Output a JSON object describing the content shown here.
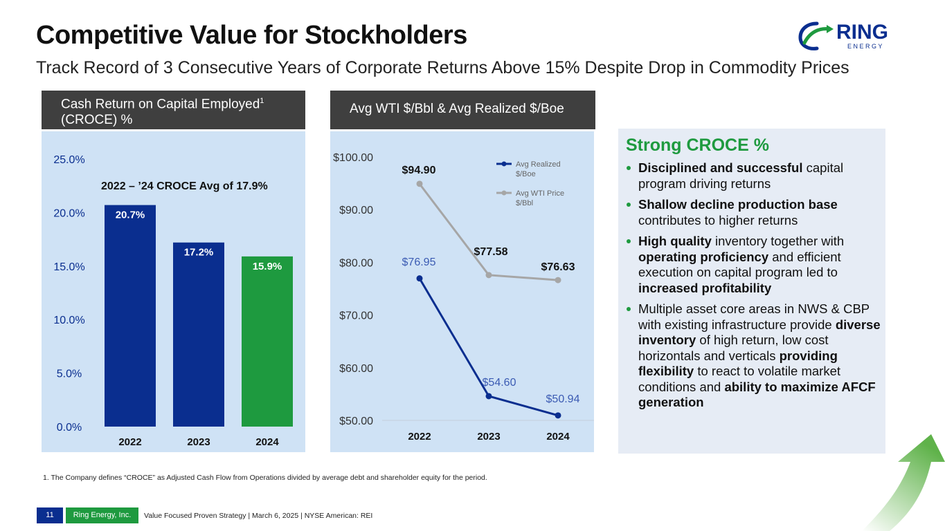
{
  "header": {
    "title": "Competitive Value for Stockholders",
    "subtitle": "Track Record of 3 Consecutive Years of Corporate Returns Above 15% Despite Drop in Commodity Prices"
  },
  "logo": {
    "word": "RING",
    "sub": "E N E R G Y"
  },
  "colors": {
    "navy": "#0a2e8f",
    "green": "#1e9a3f",
    "grey_line": "#a6a6a6",
    "panel": "#cfe2f5",
    "header_bar": "#3f3f3f"
  },
  "chart_data": [
    {
      "type": "bar",
      "title": "Cash Return on Capital Employed",
      "title_sup": "1",
      "title_line2": "(CROCE) %",
      "annotation": "2022 – ’24 CROCE Avg of 17.9%",
      "categories": [
        "2022",
        "2023",
        "2024"
      ],
      "values": [
        20.7,
        17.2,
        15.9
      ],
      "value_labels": [
        "20.7%",
        "17.2%",
        "15.9%"
      ],
      "bar_colors": [
        "#0a2e8f",
        "#0a2e8f",
        "#1e9a3f"
      ],
      "ylim": [
        0,
        25
      ],
      "yticks": [
        0,
        5,
        10,
        15,
        20,
        25
      ],
      "ytick_labels": [
        "0.0%",
        "5.0%",
        "10.0%",
        "15.0%",
        "20.0%",
        "25.0%"
      ],
      "grid": false
    },
    {
      "type": "line",
      "title": "Avg WTI $/Bbl & Avg Realized $/Boe",
      "categories": [
        "2022",
        "2023",
        "2024"
      ],
      "ylim": [
        50,
        100
      ],
      "yticks": [
        50,
        60,
        70,
        80,
        90,
        100
      ],
      "ytick_labels": [
        "$50.00",
        "$60.00",
        "$70.00",
        "$80.00",
        "$90.00",
        "$100.00"
      ],
      "legend_position": "top-right",
      "series": [
        {
          "name": "Avg Realized $/Boe",
          "legend_lines": [
            "Avg Realized",
            "$/Boe"
          ],
          "values": [
            76.95,
            54.6,
            50.94
          ],
          "labels": [
            "$76.95",
            "$54.60",
            "$50.94"
          ],
          "color": "#0a2e8f"
        },
        {
          "name": "Avg WTI Price $/Bbl",
          "legend_lines": [
            "Avg WTI Price",
            "$/Bbl"
          ],
          "values": [
            94.9,
            77.58,
            76.63
          ],
          "labels": [
            "$94.90",
            "$77.58",
            "$76.63"
          ],
          "color": "#a6a6a6"
        }
      ],
      "grid": false
    }
  ],
  "side": {
    "title": "Strong CROCE %",
    "bullets": [
      [
        {
          "b": "Disciplined and successful"
        },
        {
          "t": " capital program driving returns"
        }
      ],
      [
        {
          "b": "Shallow decline production base"
        },
        {
          "t": " contributes to higher returns"
        }
      ],
      [
        {
          "b": "High quality"
        },
        {
          "t": " inventory together with "
        },
        {
          "b": "operating proficiency"
        },
        {
          "t": " and efficient execution on capital program led to "
        },
        {
          "b": "increased profitability"
        }
      ],
      [
        {
          "t": "Multiple asset core areas in NWS & CBP with existing infrastructure provide "
        },
        {
          "b": "diverse inventory"
        },
        {
          "t": " of high return, low cost horizontals and verticals "
        },
        {
          "b": "providing flexibility"
        },
        {
          "t": " to react to volatile market conditions and "
        },
        {
          "b": "ability to maximize AFCF generation"
        }
      ]
    ]
  },
  "footnote": "1.   The Company defines “CROCE” as Adjusted Cash Flow from Operations divided by average debt and shareholder equity for the period.",
  "footer": {
    "page": "11",
    "company": "Ring Energy, Inc.",
    "text": "Value Focused Proven Strategy  | March 6, 2025 |  NYSE American: REI"
  }
}
